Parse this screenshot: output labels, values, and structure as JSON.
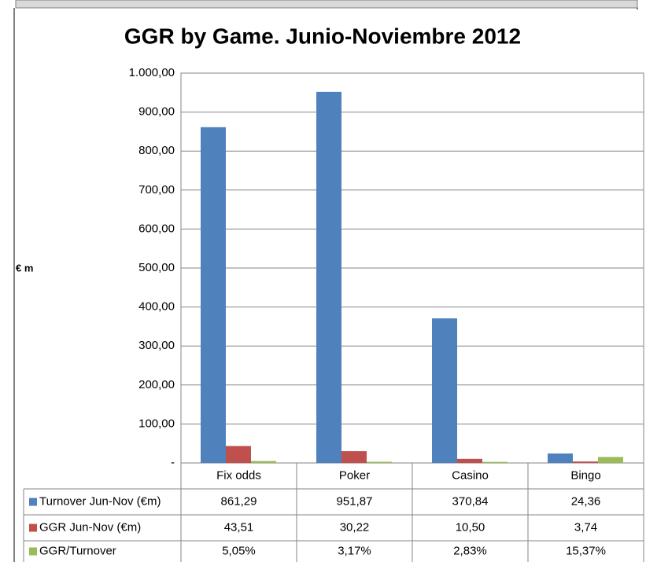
{
  "chart_data": {
    "type": "bar",
    "title": "GGR by Game. Junio-Noviembre 2012",
    "y_label": "€ m",
    "categories": [
      "Fix odds",
      "Poker",
      "Casino",
      "Bingo"
    ],
    "series": [
      {
        "name": "Turnover Jun-Nov (€m)",
        "color": "#4f81bd",
        "values": [
          861.29,
          951.87,
          370.84,
          24.36
        ],
        "value_labels": [
          "861,29",
          "951,87",
          "370,84",
          "24,36"
        ]
      },
      {
        "name": "GGR Jun-Nov (€m)",
        "color": "#c0504d",
        "values": [
          43.51,
          30.22,
          10.5,
          3.74
        ],
        "value_labels": [
          "43,51",
          "30,22",
          "10,50",
          "3,74"
        ]
      },
      {
        "name": "GGR/Turnover",
        "color": "#9bbb59",
        "values": [
          5.05,
          3.17,
          2.83,
          15.37
        ],
        "value_labels": [
          "5,05%",
          "3,17%",
          "2,83%",
          "15,37%"
        ]
      }
    ],
    "ylim": [
      0,
      1000
    ],
    "yticks": [
      {
        "value": 0,
        "label": "-"
      },
      {
        "value": 100,
        "label": "100,00"
      },
      {
        "value": 200,
        "label": "200,00"
      },
      {
        "value": 300,
        "label": "300,00"
      },
      {
        "value": 400,
        "label": "400,00"
      },
      {
        "value": 500,
        "label": "500,00"
      },
      {
        "value": 600,
        "label": "600,00"
      },
      {
        "value": 700,
        "label": "700,00"
      },
      {
        "value": 800,
        "label": "800,00"
      },
      {
        "value": 900,
        "label": "900,00"
      },
      {
        "value": 1000,
        "label": "1.000,00"
      }
    ],
    "grid": true
  }
}
